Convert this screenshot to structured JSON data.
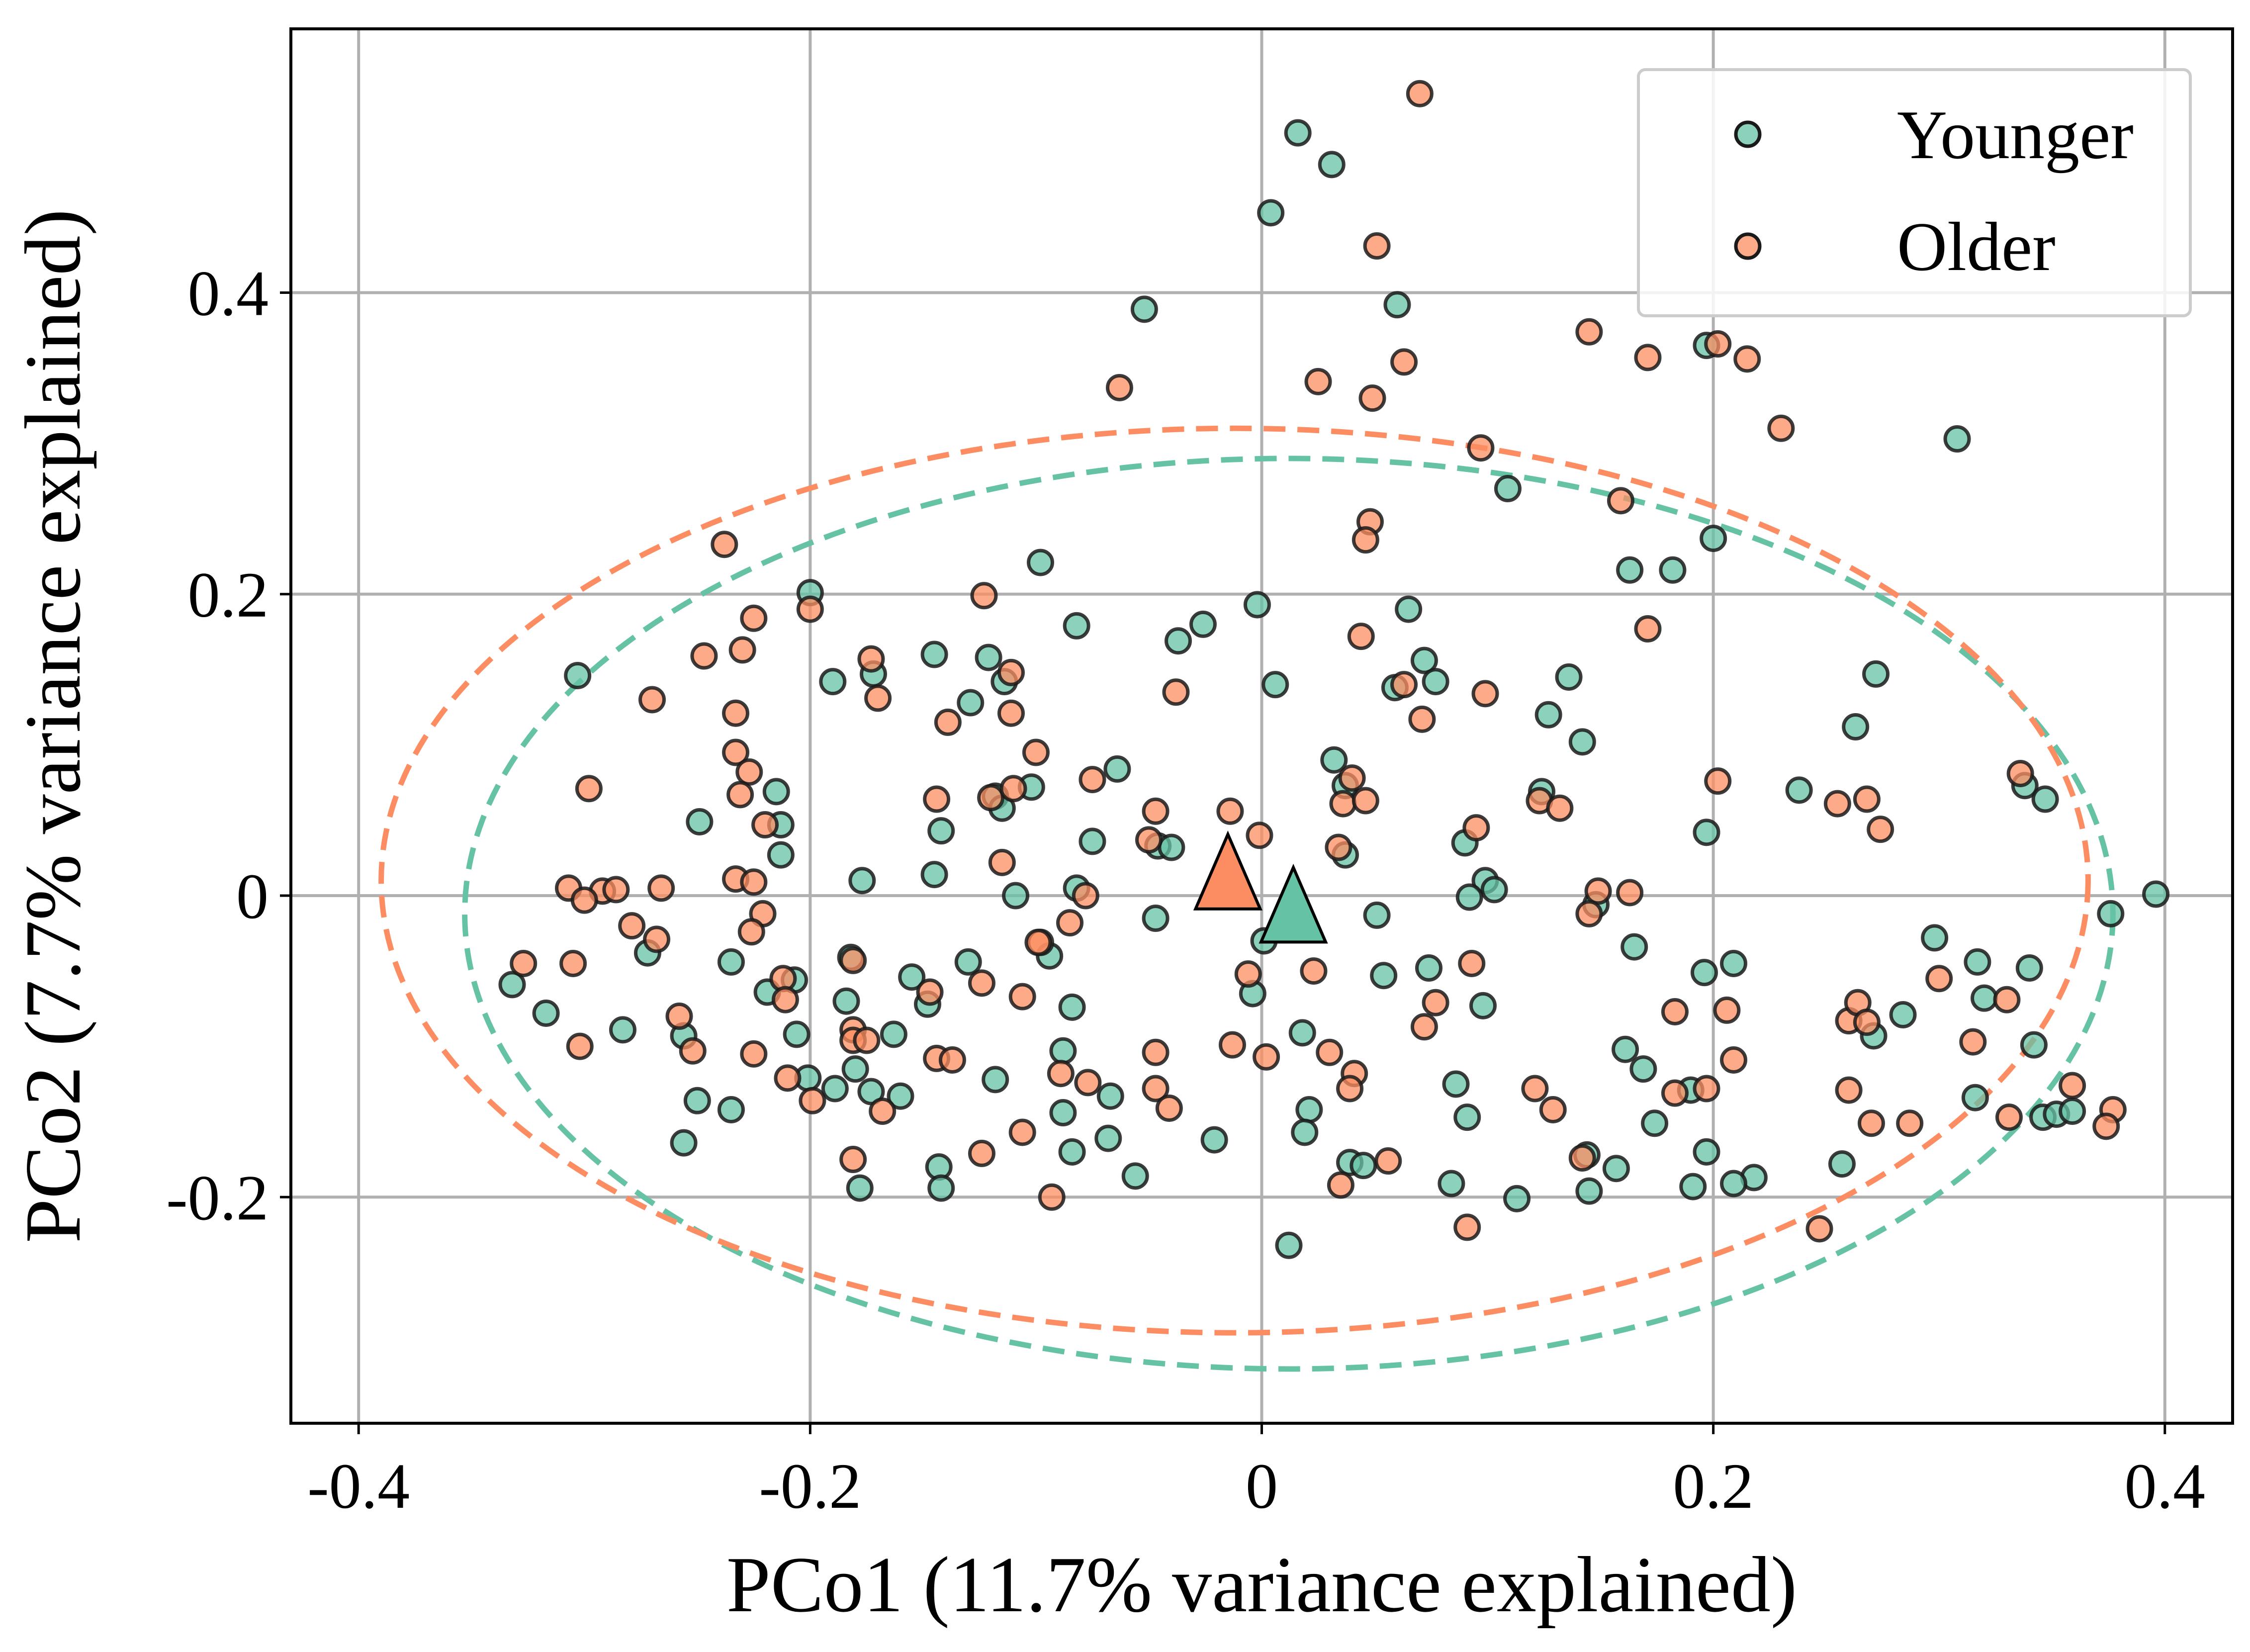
{
  "colors": {
    "younger": "#66c2a5",
    "older": "#fc8d62",
    "edge": "#1a1a1a",
    "grid": "#b0b0b0"
  },
  "chart_data": {
    "type": "scatter",
    "xlabel": "PCo1 (11.7% variance explained)",
    "ylabel": "PCo2 (7.7% variance explained)",
    "xlim": [
      -0.43,
      0.43
    ],
    "ylim": [
      -0.35,
      0.575
    ],
    "grid": true,
    "legend_position": "top-right",
    "xticks": [
      -0.4,
      -0.2,
      0,
      0.2,
      0.4
    ],
    "xtick_labels": [
      "-0.4",
      "-0.2",
      "0",
      "0.2",
      "0.4"
    ],
    "yticks": [
      -0.2,
      0,
      0.2,
      0.4
    ],
    "ytick_labels": [
      "-0.2",
      "0",
      "0.2",
      "0.4"
    ],
    "series": [
      {
        "name": "Younger",
        "color": "#66c2a5",
        "points": [
          [
            0.016,
            0.506
          ],
          [
            0.031,
            0.485
          ],
          [
            0.004,
            0.453
          ],
          [
            -0.052,
            0.389
          ],
          [
            0.06,
            0.392
          ],
          [
            0.197,
            0.365
          ],
          [
            0.308,
            0.303
          ],
          [
            0.109,
            0.27
          ],
          [
            0.163,
            0.216
          ],
          [
            0.182,
            0.216
          ],
          [
            0.2,
            0.237
          ],
          [
            -0.098,
            0.221
          ],
          [
            -0.2,
            0.201
          ],
          [
            -0.082,
            0.179
          ],
          [
            -0.026,
            0.18
          ],
          [
            -0.037,
            0.169
          ],
          [
            -0.002,
            0.193
          ],
          [
            0.065,
            0.19
          ],
          [
            -0.303,
            0.146
          ],
          [
            -0.19,
            0.142
          ],
          [
            -0.172,
            0.147
          ],
          [
            -0.145,
            0.16
          ],
          [
            -0.121,
            0.158
          ],
          [
            -0.114,
            0.142
          ],
          [
            -0.129,
            0.128
          ],
          [
            0.006,
            0.14
          ],
          [
            0.072,
            0.156
          ],
          [
            0.077,
            0.142
          ],
          [
            0.059,
            0.138
          ],
          [
            0.136,
            0.145
          ],
          [
            0.127,
            0.12
          ],
          [
            0.272,
            0.147
          ],
          [
            0.263,
            0.112
          ],
          [
            0.142,
            0.102
          ],
          [
            -0.064,
            0.084
          ],
          [
            0.032,
            0.09
          ],
          [
            0.037,
            0.073
          ],
          [
            0.238,
            0.07
          ],
          [
            -0.215,
            0.069
          ],
          [
            -0.118,
            0.066
          ],
          [
            -0.115,
            0.058
          ],
          [
            -0.102,
            0.072
          ],
          [
            0.124,
            0.069
          ],
          [
            0.338,
            0.073
          ],
          [
            0.347,
            0.064
          ],
          [
            -0.249,
            0.049
          ],
          [
            -0.213,
            0.047
          ],
          [
            -0.213,
            0.027
          ],
          [
            -0.142,
            0.043
          ],
          [
            -0.075,
            0.036
          ],
          [
            -0.046,
            0.033
          ],
          [
            -0.04,
            0.032
          ],
          [
            0.037,
            0.027
          ],
          [
            0.09,
            0.035
          ],
          [
            0.099,
            0.01
          ],
          [
            0.103,
            0.004
          ],
          [
            0.197,
            0.042
          ],
          [
            -0.177,
            0.01
          ],
          [
            -0.145,
            0.014
          ],
          [
            -0.082,
            0.005
          ],
          [
            -0.109,
            0.0
          ],
          [
            0.092,
            -0.001
          ],
          [
            0.148,
            -0.006
          ],
          [
            0.396,
            0.001
          ],
          [
            -0.047,
            -0.015
          ],
          [
            0.051,
            -0.013
          ],
          [
            0.376,
            -0.012
          ],
          [
            -0.332,
            -0.059
          ],
          [
            -0.317,
            -0.078
          ],
          [
            -0.272,
            -0.038
          ],
          [
            -0.235,
            -0.044
          ],
          [
            -0.219,
            -0.064
          ],
          [
            -0.207,
            -0.056
          ],
          [
            -0.182,
            -0.041
          ],
          [
            -0.184,
            -0.07
          ],
          [
            -0.155,
            -0.054
          ],
          [
            -0.148,
            -0.072
          ],
          [
            -0.13,
            -0.044
          ],
          [
            -0.094,
            -0.04
          ],
          [
            -0.084,
            -0.074
          ],
          [
            -0.004,
            -0.065
          ],
          [
            0.001,
            -0.03
          ],
          [
            0.054,
            -0.053
          ],
          [
            0.074,
            -0.048
          ],
          [
            0.098,
            -0.073
          ],
          [
            0.165,
            -0.034
          ],
          [
            0.196,
            -0.051
          ],
          [
            0.209,
            -0.045
          ],
          [
            0.271,
            -0.093
          ],
          [
            0.284,
            -0.079
          ],
          [
            0.298,
            -0.028
          ],
          [
            0.317,
            -0.044
          ],
          [
            0.32,
            -0.068
          ],
          [
            0.34,
            -0.048
          ],
          [
            -0.283,
            -0.089
          ],
          [
            -0.256,
            -0.093
          ],
          [
            -0.206,
            -0.092
          ],
          [
            -0.163,
            -0.092
          ],
          [
            -0.088,
            -0.103
          ],
          [
            0.018,
            -0.091
          ],
          [
            0.161,
            -0.102
          ],
          [
            0.169,
            -0.115
          ],
          [
            0.19,
            -0.129
          ],
          [
            0.342,
            -0.099
          ],
          [
            -0.25,
            -0.136
          ],
          [
            -0.235,
            -0.142
          ],
          [
            -0.201,
            -0.121
          ],
          [
            -0.189,
            -0.128
          ],
          [
            -0.18,
            -0.115
          ],
          [
            -0.173,
            -0.13
          ],
          [
            -0.16,
            -0.133
          ],
          [
            -0.118,
            -0.122
          ],
          [
            -0.088,
            -0.144
          ],
          [
            -0.084,
            -0.17
          ],
          [
            -0.067,
            -0.133
          ],
          [
            -0.068,
            -0.161
          ],
          [
            -0.056,
            -0.186
          ],
          [
            -0.021,
            -0.162
          ],
          [
            0.021,
            -0.142
          ],
          [
            0.019,
            -0.157
          ],
          [
            0.039,
            -0.177
          ],
          [
            0.045,
            -0.179
          ],
          [
            0.086,
            -0.125
          ],
          [
            0.091,
            -0.147
          ],
          [
            0.084,
            -0.191
          ],
          [
            0.113,
            -0.201
          ],
          [
            0.157,
            -0.181
          ],
          [
            0.144,
            -0.172
          ],
          [
            0.174,
            -0.151
          ],
          [
            0.191,
            -0.193
          ],
          [
            0.197,
            -0.17
          ],
          [
            0.218,
            -0.187
          ],
          [
            0.209,
            -0.191
          ],
          [
            0.257,
            -0.178
          ],
          [
            0.316,
            -0.134
          ],
          [
            0.346,
            -0.147
          ],
          [
            0.352,
            -0.145
          ],
          [
            0.359,
            -0.143
          ],
          [
            -0.256,
            -0.164
          ],
          [
            -0.178,
            -0.194
          ],
          [
            -0.143,
            -0.18
          ],
          [
            -0.142,
            -0.194
          ],
          [
            0.145,
            -0.196
          ],
          [
            0.012,
            -0.232
          ]
        ],
        "centroid": [
          0.014,
          -0.012
        ],
        "ellipse": {
          "center": [
            0.012,
            -0.012
          ],
          "rx": 0.365,
          "ry": 0.302
        }
      },
      {
        "name": "Older",
        "color": "#fc8d62",
        "points": [
          [
            0.07,
            0.532
          ],
          [
            0.051,
            0.431
          ],
          [
            0.145,
            0.374
          ],
          [
            0.171,
            0.357
          ],
          [
            0.063,
            0.354
          ],
          [
            0.202,
            0.366
          ],
          [
            0.215,
            0.356
          ],
          [
            -0.063,
            0.337
          ],
          [
            0.025,
            0.341
          ],
          [
            0.049,
            0.33
          ],
          [
            0.23,
            0.31
          ],
          [
            0.097,
            0.297
          ],
          [
            0.159,
            0.262
          ],
          [
            0.048,
            0.248
          ],
          [
            0.046,
            0.236
          ],
          [
            -0.123,
            0.199
          ],
          [
            -0.238,
            0.233
          ],
          [
            -0.2,
            0.19
          ],
          [
            -0.225,
            0.184
          ],
          [
            -0.23,
            0.163
          ],
          [
            -0.247,
            0.159
          ],
          [
            -0.173,
            0.157
          ],
          [
            -0.17,
            0.131
          ],
          [
            -0.27,
            0.13
          ],
          [
            -0.111,
            0.148
          ],
          [
            -0.139,
            0.115
          ],
          [
            -0.111,
            0.121
          ],
          [
            -0.1,
            0.095
          ],
          [
            -0.038,
            0.135
          ],
          [
            0.044,
            0.172
          ],
          [
            0.071,
            0.117
          ],
          [
            0.063,
            0.14
          ],
          [
            0.099,
            0.134
          ],
          [
            0.171,
            0.177
          ],
          [
            -0.233,
            0.121
          ],
          [
            -0.233,
            0.095
          ],
          [
            -0.227,
            0.082
          ],
          [
            -0.231,
            0.067
          ],
          [
            -0.298,
            0.071
          ],
          [
            -0.144,
            0.064
          ],
          [
            -0.12,
            0.065
          ],
          [
            -0.11,
            0.071
          ],
          [
            -0.075,
            0.077
          ],
          [
            -0.047,
            0.056
          ],
          [
            -0.014,
            0.056
          ],
          [
            0.036,
            0.061
          ],
          [
            0.046,
            0.063
          ],
          [
            0.04,
            0.078
          ],
          [
            0.095,
            0.045
          ],
          [
            0.123,
            0.063
          ],
          [
            0.132,
            0.058
          ],
          [
            0.202,
            0.076
          ],
          [
            0.255,
            0.061
          ],
          [
            0.268,
            0.064
          ],
          [
            0.274,
            0.044
          ],
          [
            0.336,
            0.081
          ],
          [
            -0.22,
            0.047
          ],
          [
            -0.115,
            0.022
          ],
          [
            -0.05,
            0.037
          ],
          [
            -0.001,
            0.04
          ],
          [
            0.034,
            0.032
          ],
          [
            0.149,
            0.003
          ],
          [
            0.163,
            0.002
          ],
          [
            -0.307,
            0.005
          ],
          [
            -0.292,
            0.003
          ],
          [
            -0.3,
            -0.003
          ],
          [
            -0.286,
            0.004
          ],
          [
            -0.266,
            0.005
          ],
          [
            -0.233,
            0.011
          ],
          [
            -0.225,
            0.009
          ],
          [
            -0.221,
            -0.012
          ],
          [
            -0.078,
            0.0
          ],
          [
            -0.085,
            -0.018
          ],
          [
            -0.098,
            -0.031
          ],
          [
            -0.305,
            -0.045
          ],
          [
            -0.327,
            -0.045
          ],
          [
            -0.279,
            -0.02
          ],
          [
            -0.268,
            -0.029
          ],
          [
            -0.226,
            -0.024
          ],
          [
            -0.212,
            -0.055
          ],
          [
            -0.211,
            -0.069
          ],
          [
            -0.181,
            -0.043
          ],
          [
            -0.147,
            -0.064
          ],
          [
            -0.124,
            -0.058
          ],
          [
            -0.099,
            -0.031
          ],
          [
            -0.106,
            -0.067
          ],
          [
            0.023,
            -0.05
          ],
          [
            -0.006,
            -0.052
          ],
          [
            0.077,
            -0.071
          ],
          [
            0.072,
            -0.087
          ],
          [
            0.093,
            -0.045
          ],
          [
            0.145,
            -0.012
          ],
          [
            0.183,
            -0.077
          ],
          [
            0.206,
            -0.076
          ],
          [
            0.26,
            -0.083
          ],
          [
            0.264,
            -0.071
          ],
          [
            0.268,
            -0.084
          ],
          [
            0.3,
            -0.055
          ],
          [
            0.33,
            -0.069
          ],
          [
            -0.302,
            -0.1
          ],
          [
            -0.258,
            -0.08
          ],
          [
            -0.252,
            -0.103
          ],
          [
            -0.225,
            -0.105
          ],
          [
            -0.181,
            -0.089
          ],
          [
            -0.181,
            -0.096
          ],
          [
            -0.175,
            -0.096
          ],
          [
            -0.144,
            -0.108
          ],
          [
            -0.137,
            -0.109
          ],
          [
            -0.089,
            -0.118
          ],
          [
            -0.047,
            -0.104
          ],
          [
            -0.013,
            -0.099
          ],
          [
            0.002,
            -0.107
          ],
          [
            0.03,
            -0.104
          ],
          [
            0.041,
            -0.118
          ],
          [
            0.039,
            -0.128
          ],
          [
            0.183,
            -0.131
          ],
          [
            0.197,
            -0.128
          ],
          [
            0.209,
            -0.109
          ],
          [
            0.315,
            -0.097
          ],
          [
            -0.21,
            -0.121
          ],
          [
            -0.199,
            -0.136
          ],
          [
            -0.168,
            -0.143
          ],
          [
            -0.106,
            -0.157
          ],
          [
            -0.077,
            -0.124
          ],
          [
            -0.047,
            -0.128
          ],
          [
            -0.041,
            -0.141
          ],
          [
            0.121,
            -0.128
          ],
          [
            0.129,
            -0.142
          ],
          [
            0.142,
            -0.174
          ],
          [
            0.26,
            -0.129
          ],
          [
            0.27,
            -0.151
          ],
          [
            0.287,
            -0.151
          ],
          [
            0.331,
            -0.147
          ],
          [
            0.359,
            -0.126
          ],
          [
            0.377,
            -0.142
          ],
          [
            0.374,
            -0.153
          ],
          [
            -0.181,
            -0.175
          ],
          [
            -0.124,
            -0.171
          ],
          [
            -0.093,
            -0.2
          ],
          [
            0.056,
            -0.176
          ],
          [
            0.035,
            -0.192
          ],
          [
            0.091,
            -0.22
          ],
          [
            0.247,
            -0.221
          ]
        ],
        "centroid": [
          -0.015,
          0.01
        ],
        "ellipse": {
          "center": [
            -0.012,
            0.01
          ],
          "rx": 0.378,
          "ry": 0.3
        }
      }
    ]
  }
}
